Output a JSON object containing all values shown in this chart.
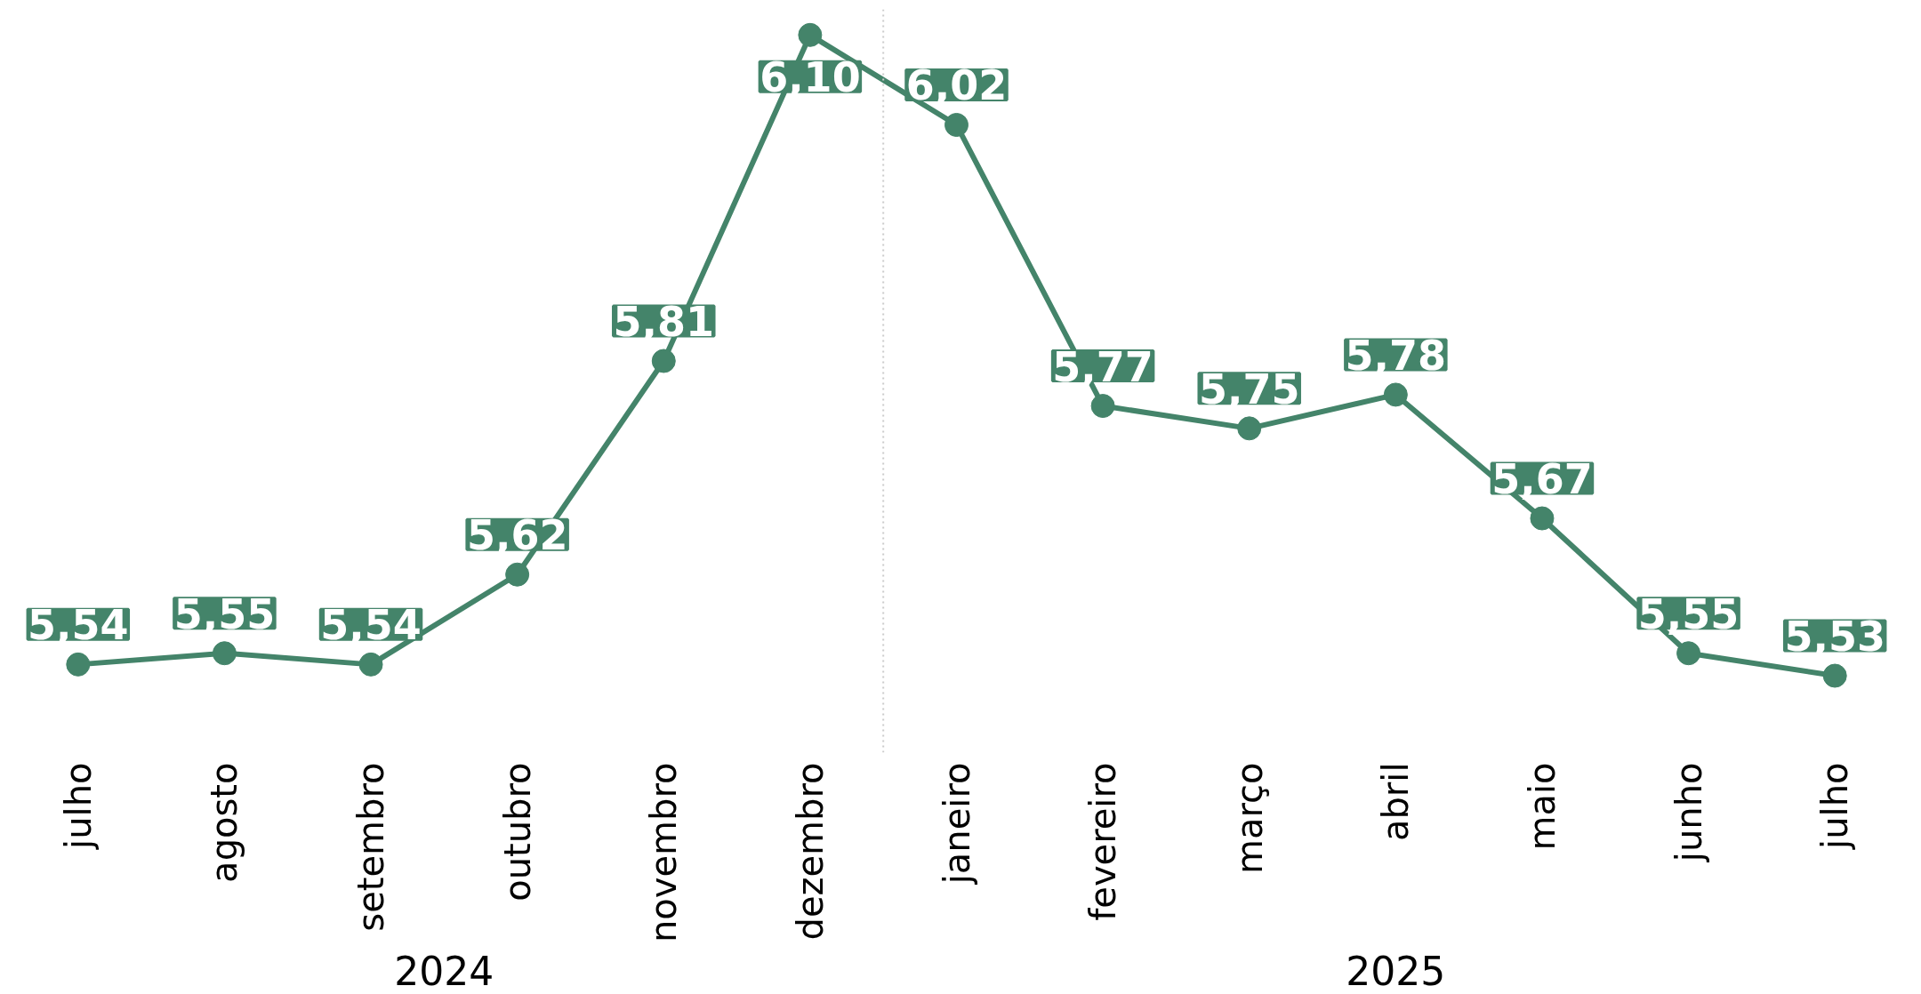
{
  "chart_data": {
    "type": "line",
    "categories": [
      "julho",
      "agosto",
      "setembro",
      "outubro",
      "novembro",
      "dezembro",
      "janeiro",
      "fevereiro",
      "março",
      "abril",
      "maio",
      "junho",
      "julho"
    ],
    "series": [
      {
        "color": "#44846a",
        "values": [
          5.54,
          5.55,
          5.54,
          5.62,
          5.81,
          6.1,
          6.02,
          5.77,
          5.75,
          5.78,
          5.67,
          5.55,
          5.53
        ],
        "value_labels": [
          "5,54",
          "5,55",
          "5,54",
          "5,62",
          "5,81",
          "6,10",
          "6,02",
          "5,77",
          "5,75",
          "5,78",
          "5,67",
          "5,55",
          "5,53"
        ]
      }
    ],
    "marker": "circle",
    "line_style": "solid",
    "grid": false,
    "tick_labels": "x",
    "annotations": [
      "2024",
      "2025"
    ]
  }
}
